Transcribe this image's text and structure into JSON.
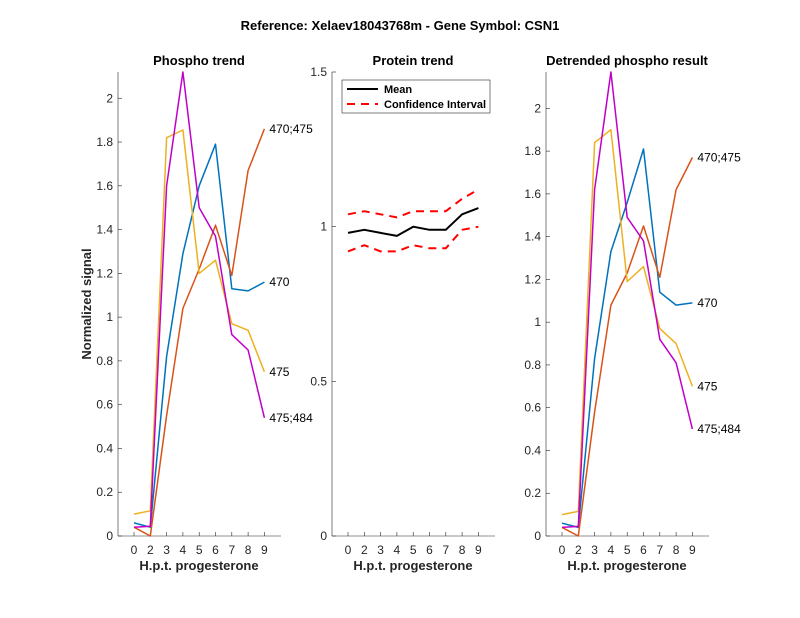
{
  "figure_title": "Reference:  Xelaev18043768m - Gene Symbol:  CSN1",
  "colors": {
    "470": "#0072BD",
    "470;475": "#D95319",
    "475": "#EDB120",
    "475;484": "#C000C8",
    "mean": "#000000",
    "ci": "#FF0000",
    "axis": "#262626"
  },
  "chart_data": [
    {
      "type": "line",
      "title": "Phospho trend",
      "xlabel": "H.p.t. progesterone",
      "ylabel": "Normalized signal",
      "categories": [
        "0",
        "2",
        "3",
        "4",
        "5",
        "6",
        "7",
        "8",
        "9"
      ],
      "ylim": [
        0,
        2.12
      ],
      "yticks": [
        "0",
        "0.2",
        "0.4",
        "0.6",
        "0.8",
        "1",
        "1.2",
        "1.4",
        "1.6",
        "1.8",
        "2"
      ],
      "ytick_values": [
        0,
        0.2,
        0.4,
        0.6,
        0.8,
        1,
        1.2,
        1.4,
        1.6,
        1.8,
        2
      ],
      "series": [
        {
          "name": "470",
          "values": [
            0.06,
            0.04,
            0.82,
            1.29,
            1.6,
            1.79,
            1.13,
            1.12,
            1.16
          ]
        },
        {
          "name": "470;475",
          "values": [
            0.04,
            0.0,
            0.55,
            1.04,
            1.22,
            1.42,
            1.19,
            1.67,
            1.86
          ]
        },
        {
          "name": "475",
          "values": [
            0.1,
            0.115,
            1.82,
            1.855,
            1.2,
            1.26,
            0.97,
            0.94,
            0.75
          ]
        },
        {
          "name": "475;484",
          "values": [
            0.04,
            0.045,
            1.6,
            2.12,
            1.5,
            1.37,
            0.92,
            0.85,
            0.54
          ]
        }
      ]
    },
    {
      "type": "line",
      "title": "Protein trend",
      "xlabel": "H.p.t. progesterone",
      "ylabel": "",
      "categories": [
        "0",
        "2",
        "3",
        "4",
        "5",
        "6",
        "7",
        "8",
        "9"
      ],
      "ylim": [
        0,
        1.5
      ],
      "yticks": [
        "0",
        "0.5",
        "1",
        "1.5"
      ],
      "ytick_values": [
        0,
        0.5,
        1,
        1.5
      ],
      "legend": {
        "position": "top-left",
        "entries": [
          "Mean",
          "Confidence Interval"
        ]
      },
      "series": [
        {
          "name": "Mean",
          "values": [
            0.98,
            0.99,
            0.98,
            0.97,
            1.0,
            0.99,
            0.99,
            1.04,
            1.06
          ]
        },
        {
          "name": "Confidence Interval upper",
          "values": [
            1.04,
            1.05,
            1.04,
            1.03,
            1.05,
            1.05,
            1.05,
            1.09,
            1.12
          ]
        },
        {
          "name": "Confidence Interval lower",
          "values": [
            0.92,
            0.94,
            0.92,
            0.92,
            0.94,
            0.93,
            0.93,
            0.99,
            1.0
          ]
        }
      ]
    },
    {
      "type": "line",
      "title": "Detrended phospho result",
      "xlabel": "H.p.t. progesterone",
      "ylabel": "",
      "categories": [
        "0",
        "2",
        "3",
        "4",
        "5",
        "6",
        "7",
        "8",
        "9"
      ],
      "ylim": [
        0,
        2.17
      ],
      "yticks": [
        "0",
        "0.2",
        "0.4",
        "0.6",
        "0.8",
        "1",
        "1.2",
        "1.4",
        "1.6",
        "1.8",
        "2"
      ],
      "ytick_values": [
        0,
        0.2,
        0.4,
        0.6,
        0.8,
        1,
        1.2,
        1.4,
        1.6,
        1.8,
        2
      ],
      "series": [
        {
          "name": "470",
          "values": [
            0.06,
            0.04,
            0.83,
            1.33,
            1.56,
            1.81,
            1.14,
            1.08,
            1.09
          ]
        },
        {
          "name": "470;475",
          "values": [
            0.04,
            0.0,
            0.58,
            1.08,
            1.23,
            1.45,
            1.21,
            1.62,
            1.77
          ]
        },
        {
          "name": "475",
          "values": [
            0.1,
            0.115,
            1.84,
            1.9,
            1.19,
            1.26,
            0.97,
            0.9,
            0.7
          ]
        },
        {
          "name": "475;484",
          "values": [
            0.04,
            0.045,
            1.62,
            2.17,
            1.49,
            1.38,
            0.92,
            0.81,
            0.5
          ]
        }
      ]
    }
  ]
}
